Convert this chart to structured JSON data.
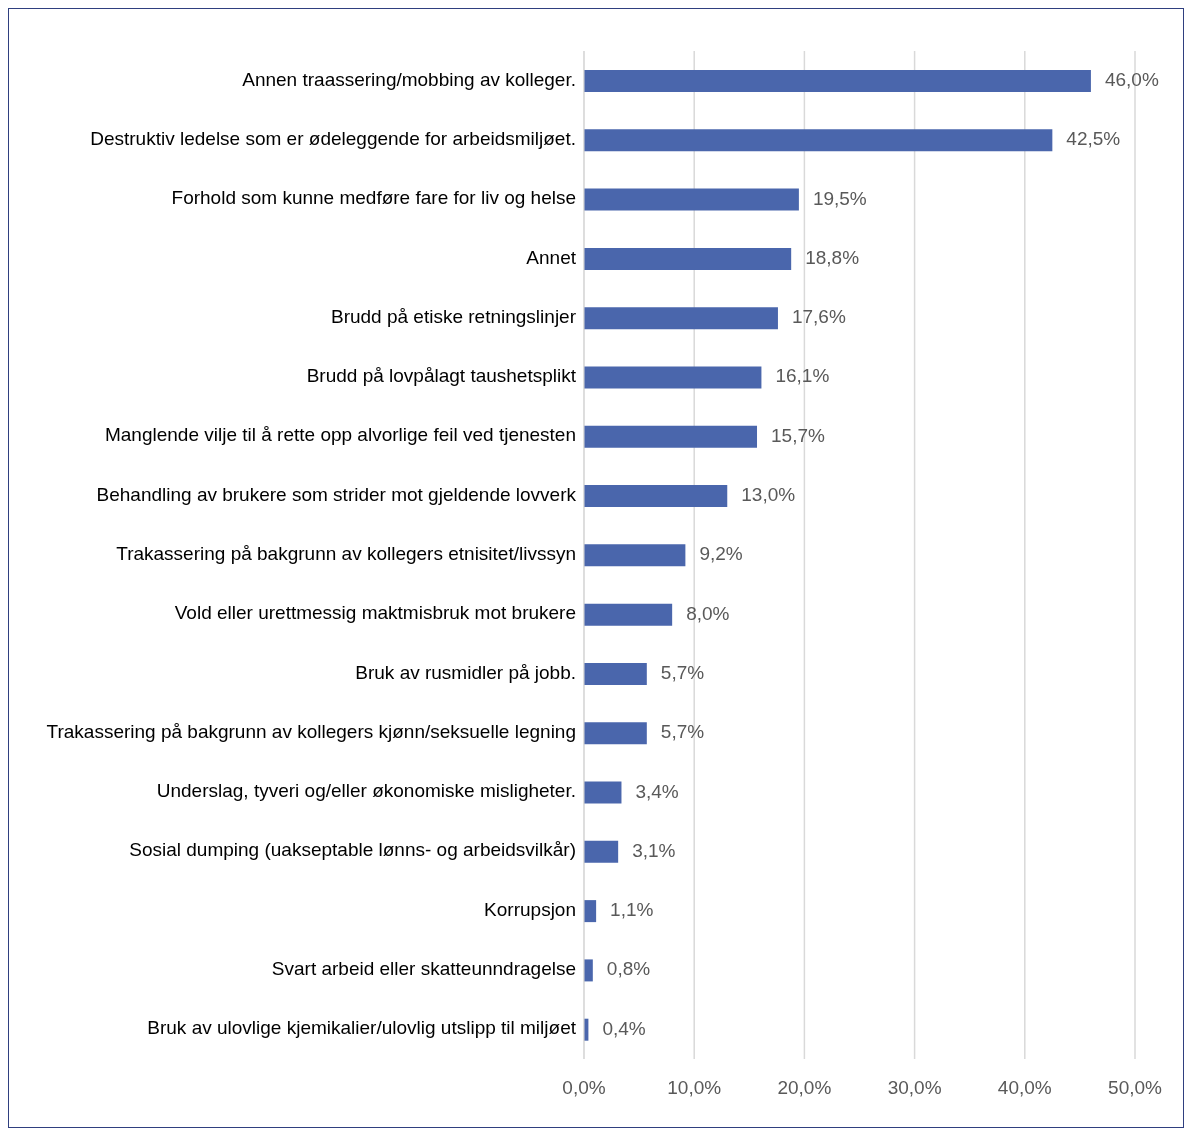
{
  "chart_data": {
    "type": "bar",
    "orientation": "horizontal",
    "categories": [
      "Annen traassering/mobbing av kolleger.",
      "Destruktiv ledelse som er ødeleggende for arbeidsmiljøet.",
      "Forhold som kunne medføre fare for liv og helse",
      "Annet",
      "Brudd på etiske retningslinjer",
      "Brudd på lovpålagt taushetsplikt",
      "Manglende vilje til å rette opp alvorlige feil ved tjenesten",
      "Behandling av brukere som strider mot gjeldende lovverk",
      "Trakassering på bakgrunn av kollegers etnisitet/livssyn",
      "Vold eller urettmessig maktmisbruk mot brukere",
      "Bruk av rusmidler på jobb.",
      "Trakassering på bakgrunn av kollegers kjønn/seksuelle legning",
      "Underslag, tyveri og/eller økonomiske misligheter.",
      "Sosial dumping (uakseptable lønns- og arbeidsvilkår)",
      "Korrupsjon",
      "Svart arbeid eller skatteunndragelse",
      "Bruk av ulovlige kjemikalier/ulovlig utslipp til miljøet"
    ],
    "values": [
      46.0,
      42.5,
      19.5,
      18.8,
      17.6,
      16.1,
      15.7,
      13.0,
      9.2,
      8.0,
      5.7,
      5.7,
      3.4,
      3.1,
      1.1,
      0.8,
      0.4
    ],
    "value_labels": [
      "46,0%",
      "42,5%",
      "19,5%",
      "18,8%",
      "17,6%",
      "16,1%",
      "15,7%",
      "13,0%",
      "9,2%",
      "8,0%",
      "5,7%",
      "5,7%",
      "3,4%",
      "3,1%",
      "1,1%",
      "0,8%",
      "0,4%"
    ],
    "color": "#4a66ac",
    "xlim": [
      0,
      50
    ],
    "xticks": [
      {
        "value": 0,
        "label": "0,0%"
      },
      {
        "value": 10,
        "label": "10,0%"
      },
      {
        "value": 20,
        "label": "20,0%"
      },
      {
        "value": 30,
        "label": "30,0%"
      },
      {
        "value": 40,
        "label": "40,0%"
      },
      {
        "value": 50,
        "label": "50,0%"
      }
    ],
    "grid": "x"
  }
}
